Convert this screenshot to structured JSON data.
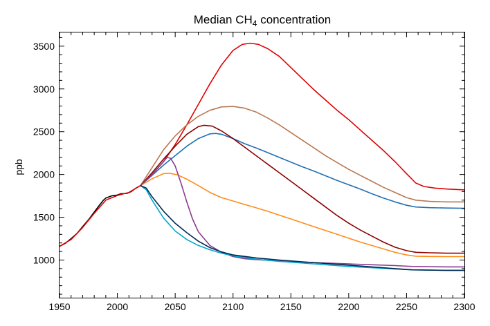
{
  "chart_data": {
    "type": "line",
    "title": "Median CH",
    "title_subscript": "4",
    "title_suffix": " concentration",
    "xlabel": "",
    "ylabel": "ppb",
    "xlim": [
      1950,
      2300
    ],
    "ylim": [
      560,
      3660
    ],
    "xticks": [
      1950,
      2000,
      2050,
      2100,
      2150,
      2200,
      2250,
      2300
    ],
    "yticks": [
      1000,
      1500,
      2000,
      2500,
      3000,
      3500
    ],
    "grid": false,
    "series": [
      {
        "color": "#000000",
        "points": [
          [
            1950,
            1160
          ],
          [
            1955,
            1195
          ],
          [
            1960,
            1250
          ],
          [
            1965,
            1310
          ],
          [
            1970,
            1390
          ],
          [
            1975,
            1470
          ],
          [
            1980,
            1560
          ],
          [
            1985,
            1650
          ],
          [
            1988,
            1700
          ],
          [
            1990,
            1725
          ],
          [
            1995,
            1750
          ],
          [
            2000,
            1760
          ],
          [
            2003,
            1775
          ],
          [
            2008,
            1778
          ],
          [
            2012,
            1800
          ],
          [
            2016,
            1840
          ],
          [
            2020,
            1870
          ]
        ]
      },
      {
        "color": "#e00000",
        "points": [
          [
            1950,
            1160
          ],
          [
            1960,
            1240
          ],
          [
            1970,
            1380
          ],
          [
            1980,
            1545
          ],
          [
            1990,
            1700
          ],
          [
            2000,
            1755
          ],
          [
            2010,
            1790
          ],
          [
            2020,
            1870
          ],
          [
            2030,
            2000
          ],
          [
            2040,
            2150
          ],
          [
            2050,
            2350
          ],
          [
            2060,
            2580
          ],
          [
            2070,
            2820
          ],
          [
            2080,
            3060
          ],
          [
            2090,
            3280
          ],
          [
            2100,
            3450
          ],
          [
            2108,
            3520
          ],
          [
            2115,
            3535
          ],
          [
            2122,
            3520
          ],
          [
            2130,
            3470
          ],
          [
            2140,
            3380
          ],
          [
            2150,
            3250
          ],
          [
            2160,
            3120
          ],
          [
            2170,
            2990
          ],
          [
            2180,
            2870
          ],
          [
            2190,
            2750
          ],
          [
            2200,
            2640
          ],
          [
            2210,
            2520
          ],
          [
            2220,
            2400
          ],
          [
            2230,
            2280
          ],
          [
            2240,
            2150
          ],
          [
            2250,
            2010
          ],
          [
            2258,
            1900
          ],
          [
            2265,
            1860
          ],
          [
            2275,
            1840
          ],
          [
            2285,
            1830
          ],
          [
            2300,
            1820
          ]
        ]
      },
      {
        "color": "#b87850",
        "points": [
          [
            2020,
            1870
          ],
          [
            2030,
            2080
          ],
          [
            2040,
            2290
          ],
          [
            2050,
            2450
          ],
          [
            2060,
            2580
          ],
          [
            2070,
            2680
          ],
          [
            2080,
            2750
          ],
          [
            2090,
            2790
          ],
          [
            2100,
            2795
          ],
          [
            2110,
            2775
          ],
          [
            2120,
            2730
          ],
          [
            2130,
            2660
          ],
          [
            2140,
            2580
          ],
          [
            2150,
            2490
          ],
          [
            2160,
            2400
          ],
          [
            2170,
            2310
          ],
          [
            2180,
            2220
          ],
          [
            2190,
            2140
          ],
          [
            2200,
            2060
          ],
          [
            2210,
            1990
          ],
          [
            2220,
            1920
          ],
          [
            2230,
            1850
          ],
          [
            2240,
            1790
          ],
          [
            2250,
            1730
          ],
          [
            2258,
            1700
          ],
          [
            2270,
            1685
          ],
          [
            2285,
            1680
          ],
          [
            2300,
            1680
          ]
        ]
      },
      {
        "color": "#1f6fb5",
        "points": [
          [
            2020,
            1870
          ],
          [
            2030,
            1990
          ],
          [
            2040,
            2110
          ],
          [
            2050,
            2220
          ],
          [
            2060,
            2330
          ],
          [
            2070,
            2420
          ],
          [
            2080,
            2475
          ],
          [
            2085,
            2480
          ],
          [
            2090,
            2470
          ],
          [
            2100,
            2420
          ],
          [
            2110,
            2360
          ],
          [
            2120,
            2310
          ],
          [
            2130,
            2255
          ],
          [
            2140,
            2200
          ],
          [
            2150,
            2145
          ],
          [
            2160,
            2090
          ],
          [
            2170,
            2040
          ],
          [
            2180,
            1985
          ],
          [
            2190,
            1930
          ],
          [
            2200,
            1880
          ],
          [
            2210,
            1830
          ],
          [
            2220,
            1775
          ],
          [
            2230,
            1725
          ],
          [
            2240,
            1680
          ],
          [
            2250,
            1640
          ],
          [
            2258,
            1620
          ],
          [
            2270,
            1612
          ],
          [
            2285,
            1608
          ],
          [
            2300,
            1605
          ]
        ]
      },
      {
        "color": "#8b0000",
        "points": [
          [
            2020,
            1870
          ],
          [
            2030,
            2020
          ],
          [
            2040,
            2180
          ],
          [
            2050,
            2330
          ],
          [
            2060,
            2470
          ],
          [
            2070,
            2560
          ],
          [
            2075,
            2575
          ],
          [
            2082,
            2565
          ],
          [
            2090,
            2510
          ],
          [
            2100,
            2420
          ],
          [
            2110,
            2320
          ],
          [
            2120,
            2220
          ],
          [
            2130,
            2120
          ],
          [
            2140,
            2020
          ],
          [
            2150,
            1920
          ],
          [
            2160,
            1820
          ],
          [
            2170,
            1720
          ],
          [
            2180,
            1620
          ],
          [
            2190,
            1520
          ],
          [
            2200,
            1430
          ],
          [
            2210,
            1350
          ],
          [
            2220,
            1280
          ],
          [
            2230,
            1210
          ],
          [
            2240,
            1150
          ],
          [
            2250,
            1110
          ],
          [
            2258,
            1090
          ],
          [
            2270,
            1085
          ],
          [
            2285,
            1080
          ],
          [
            2300,
            1080
          ]
        ]
      },
      {
        "color": "#ff8c1a",
        "points": [
          [
            2020,
            1870
          ],
          [
            2030,
            1950
          ],
          [
            2040,
            2010
          ],
          [
            2045,
            2015
          ],
          [
            2052,
            1995
          ],
          [
            2060,
            1945
          ],
          [
            2070,
            1870
          ],
          [
            2080,
            1790
          ],
          [
            2090,
            1730
          ],
          [
            2100,
            1690
          ],
          [
            2110,
            1650
          ],
          [
            2120,
            1610
          ],
          [
            2130,
            1570
          ],
          [
            2140,
            1525
          ],
          [
            2150,
            1480
          ],
          [
            2160,
            1435
          ],
          [
            2170,
            1390
          ],
          [
            2180,
            1345
          ],
          [
            2190,
            1300
          ],
          [
            2200,
            1255
          ],
          [
            2210,
            1210
          ],
          [
            2220,
            1170
          ],
          [
            2230,
            1130
          ],
          [
            2240,
            1090
          ],
          [
            2250,
            1060
          ],
          [
            2258,
            1045
          ],
          [
            2270,
            1042
          ],
          [
            2285,
            1040
          ],
          [
            2300,
            1040
          ]
        ]
      },
      {
        "color": "#8b3a8f",
        "points": [
          [
            2020,
            1870
          ],
          [
            2030,
            2000
          ],
          [
            2040,
            2150
          ],
          [
            2043,
            2200
          ],
          [
            2046,
            2190
          ],
          [
            2050,
            2100
          ],
          [
            2055,
            1900
          ],
          [
            2060,
            1680
          ],
          [
            2065,
            1480
          ],
          [
            2070,
            1330
          ],
          [
            2080,
            1170
          ],
          [
            2090,
            1090
          ],
          [
            2100,
            1040
          ],
          [
            2110,
            1015
          ],
          [
            2120,
            1005
          ],
          [
            2140,
            990
          ],
          [
            2160,
            975
          ],
          [
            2180,
            965
          ],
          [
            2200,
            955
          ],
          [
            2220,
            945
          ],
          [
            2240,
            935
          ],
          [
            2255,
            925
          ],
          [
            2270,
            922
          ],
          [
            2285,
            920
          ],
          [
            2300,
            920
          ]
        ]
      },
      {
        "color": "#00a5d0",
        "points": [
          [
            2020,
            1870
          ],
          [
            2025,
            1820
          ],
          [
            2030,
            1700
          ],
          [
            2040,
            1490
          ],
          [
            2050,
            1340
          ],
          [
            2060,
            1240
          ],
          [
            2070,
            1170
          ],
          [
            2080,
            1120
          ],
          [
            2090,
            1080
          ],
          [
            2100,
            1050
          ],
          [
            2120,
            1010
          ],
          [
            2140,
            985
          ],
          [
            2160,
            965
          ],
          [
            2180,
            945
          ],
          [
            2200,
            925
          ],
          [
            2220,
            910
          ],
          [
            2240,
            895
          ],
          [
            2255,
            885
          ],
          [
            2270,
            882
          ],
          [
            2285,
            880
          ],
          [
            2300,
            880
          ]
        ]
      },
      {
        "color": "#002b52",
        "points": [
          [
            2020,
            1870
          ],
          [
            2025,
            1840
          ],
          [
            2030,
            1740
          ],
          [
            2040,
            1570
          ],
          [
            2050,
            1430
          ],
          [
            2060,
            1320
          ],
          [
            2070,
            1220
          ],
          [
            2080,
            1145
          ],
          [
            2090,
            1095
          ],
          [
            2100,
            1060
          ],
          [
            2120,
            1025
          ],
          [
            2140,
            1000
          ],
          [
            2160,
            980
          ],
          [
            2180,
            960
          ],
          [
            2200,
            940
          ],
          [
            2220,
            920
          ],
          [
            2240,
            900
          ],
          [
            2255,
            885
          ],
          [
            2270,
            882
          ],
          [
            2285,
            880
          ],
          [
            2300,
            880
          ]
        ]
      }
    ]
  }
}
